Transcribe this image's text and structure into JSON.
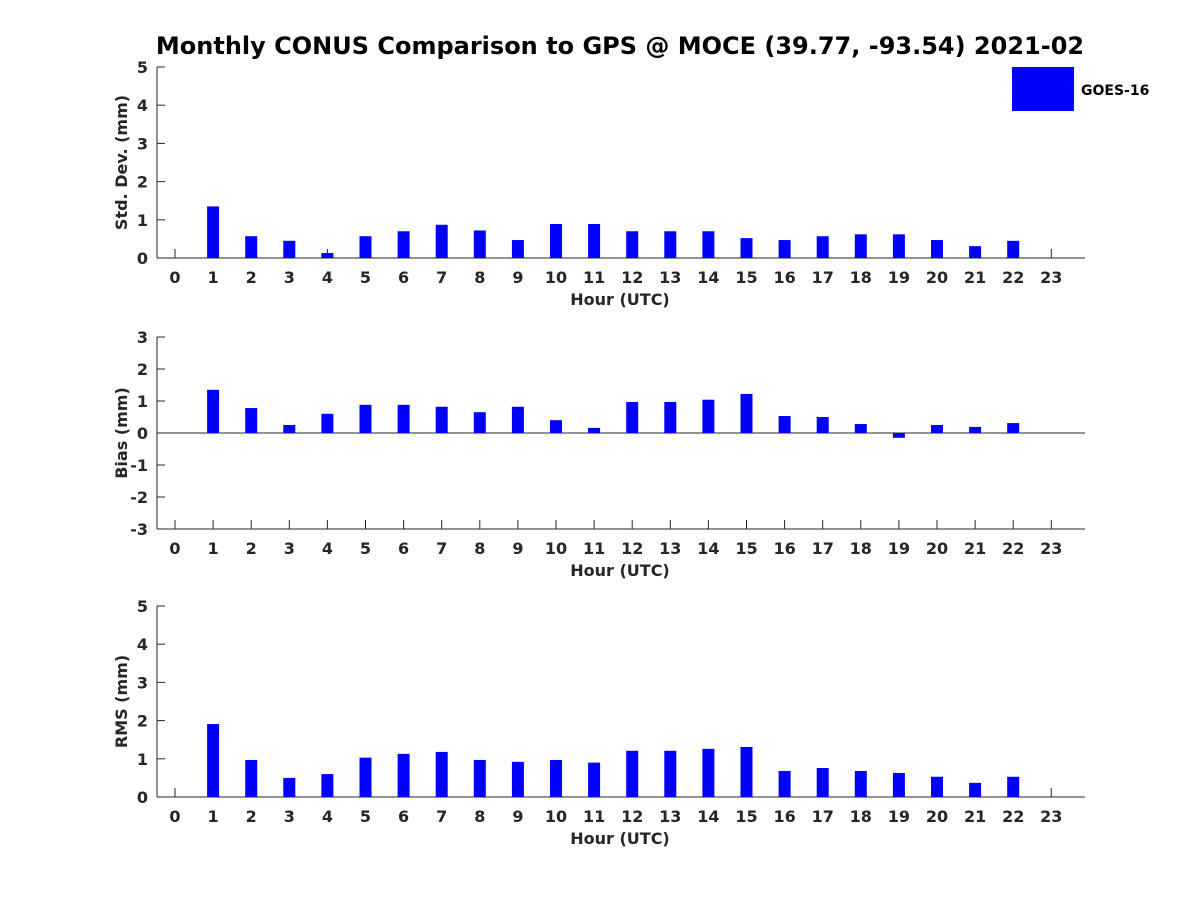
{
  "title": "Monthly CONUS Comparison to GPS @ MOCE (39.77, -93.54) 2021-02",
  "colors": {
    "bar": "#0000ff",
    "axis": "#262626"
  },
  "legend": {
    "label": "GOES-16",
    "placement": "top-right"
  },
  "chart_data": [
    {
      "type": "bar",
      "xlabel": "Hour (UTC)",
      "ylabel": "Std. Dev. (mm)",
      "ylim": [
        0,
        5
      ],
      "yticks": [
        "0",
        "1",
        "2",
        "3",
        "4",
        "5"
      ],
      "categories": [
        "0",
        "1",
        "2",
        "3",
        "4",
        "5",
        "6",
        "7",
        "8",
        "9",
        "10",
        "11",
        "12",
        "13",
        "14",
        "15",
        "16",
        "17",
        "18",
        "19",
        "20",
        "21",
        "22",
        "23"
      ],
      "series": [
        {
          "name": "GOES-16",
          "values": [
            null,
            1.35,
            0.57,
            0.45,
            0.13,
            0.57,
            0.7,
            0.87,
            0.72,
            0.47,
            0.89,
            0.89,
            0.7,
            0.7,
            0.7,
            0.52,
            0.47,
            0.57,
            0.62,
            0.62,
            0.47,
            0.31,
            0.45,
            null
          ]
        }
      ]
    },
    {
      "type": "bar",
      "xlabel": "Hour (UTC)",
      "ylabel": "Bias (mm)",
      "ylim": [
        -3,
        3
      ],
      "yticks": [
        "-3",
        "-2",
        "-1",
        "0",
        "1",
        "2",
        "3"
      ],
      "categories": [
        "0",
        "1",
        "2",
        "3",
        "4",
        "5",
        "6",
        "7",
        "8",
        "9",
        "10",
        "11",
        "12",
        "13",
        "14",
        "15",
        "16",
        "17",
        "18",
        "19",
        "20",
        "21",
        "22",
        "23"
      ],
      "series": [
        {
          "name": "GOES-16",
          "values": [
            null,
            1.35,
            0.78,
            0.25,
            0.6,
            0.88,
            0.88,
            0.82,
            0.65,
            0.82,
            0.4,
            0.16,
            0.97,
            0.97,
            1.04,
            1.22,
            0.53,
            0.5,
            0.28,
            -0.15,
            0.25,
            0.19,
            0.31,
            null
          ]
        }
      ]
    },
    {
      "type": "bar",
      "xlabel": "Hour (UTC)",
      "ylabel": "RMS (mm)",
      "ylim": [
        0,
        5
      ],
      "yticks": [
        "0",
        "1",
        "2",
        "3",
        "4",
        "5"
      ],
      "categories": [
        "0",
        "1",
        "2",
        "3",
        "4",
        "5",
        "6",
        "7",
        "8",
        "9",
        "10",
        "11",
        "12",
        "13",
        "14",
        "15",
        "16",
        "17",
        "18",
        "19",
        "20",
        "21",
        "22",
        "23"
      ],
      "series": [
        {
          "name": "GOES-16",
          "values": [
            null,
            1.91,
            0.97,
            0.5,
            0.6,
            1.03,
            1.13,
            1.18,
            0.97,
            0.92,
            0.97,
            0.9,
            1.21,
            1.21,
            1.26,
            1.31,
            0.68,
            0.76,
            0.68,
            0.63,
            0.53,
            0.37,
            0.53,
            null
          ]
        }
      ]
    }
  ]
}
